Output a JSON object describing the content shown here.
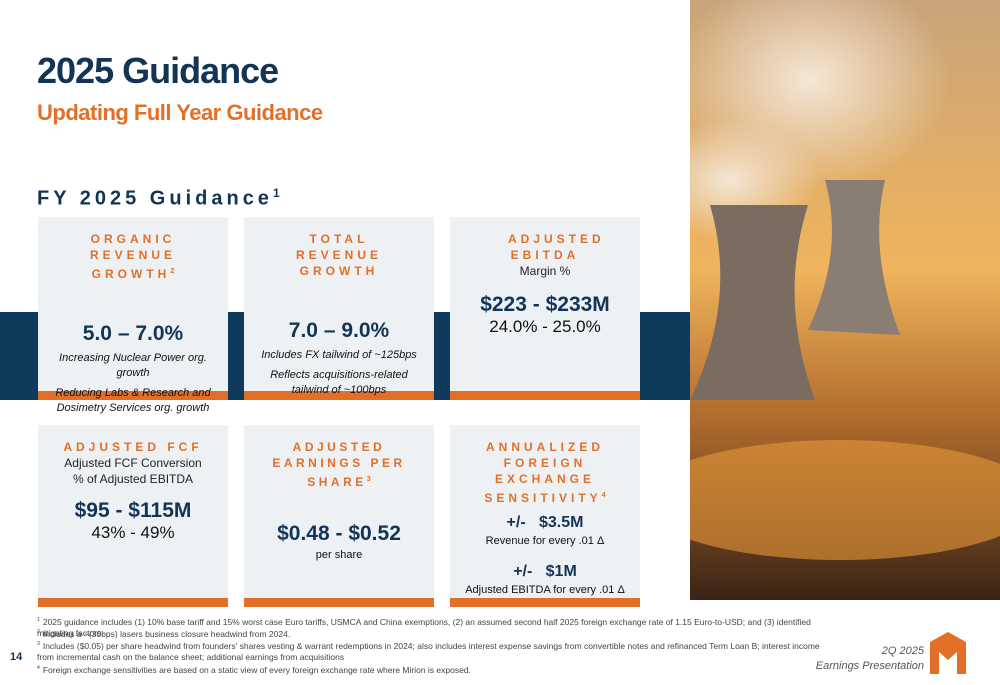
{
  "header": {
    "title": "2025 Guidance",
    "subtitle": "Updating Full Year Guidance"
  },
  "section": {
    "title": "FY 2025 Guidance",
    "note": "1"
  },
  "cards": [
    {
      "heading": "ORGANIC REVENUE GROWTH",
      "note": "2",
      "value": "5.0 – 7.0%",
      "details": [
        "Increasing Nuclear Power org. growth",
        "Reducing Labs & Research and Dosimetry Services org. growth"
      ]
    },
    {
      "heading": "TOTAL REVENUE GROWTH",
      "value": "7.0 – 9.0%",
      "details": [
        "Includes FX tailwind of ~125bps",
        "Reflects acquisitions-related tailwind of ~100bps"
      ]
    },
    {
      "heading": "ADJUSTED EBITDA",
      "caption": [
        "Margin %"
      ],
      "value": "$223 - $233M",
      "value2": "24.0% - 25.0%"
    },
    {
      "heading": "ADJUSTED FCF",
      "caption": [
        "Adjusted FCF Conversion",
        "% of Adjusted EBITDA"
      ],
      "value": "$95 - $115M",
      "value2": "43% - 49%"
    },
    {
      "heading": "ADJUSTED EARNINGS PER SHARE",
      "note": "3",
      "value": "$0.48 - $0.52",
      "caption2": "per share"
    },
    {
      "heading": "ANNUALIZED FOREIGN EXCHANGE SENSITIVITY",
      "note": "4",
      "items": [
        {
          "value": "+/-   $3.5M",
          "desc": "Revenue for every .01 Δ"
        },
        {
          "value": "+/-   $1M",
          "desc": "Adjusted EBITDA for every .01 Δ"
        }
      ]
    }
  ],
  "footnotes": [
    {
      "mark": "1",
      "text": "2025 guidance includes (1) 10% base tariff and 15% worst case Euro tariffs, USMCA and China exemptions, (2) an assumed second half 2025 foreign exchange rate of 1.15 Euro-to-USD; and (3) identified mitigating factors."
    },
    {
      "mark": "2",
      "text": "Includes a ~(30bps) lasers business closure headwind from 2024."
    },
    {
      "mark": "3",
      "text": "Includes ($0.05) per share headwind from founders' shares vesting & warrant redemptions in 2024; also includes interest expense savings from convertible notes and refinanced Term Loan B; interest income from incremental cash on the balance sheet; additional earnings from acquisitions"
    },
    {
      "mark": "4",
      "text": "Foreign exchange sensitivities are based on a static view of every foreign exchange rate where Mirion is exposed."
    }
  ],
  "footer": {
    "page": "14",
    "line1": "2Q 2025",
    "line2": "Earnings Presentation"
  }
}
